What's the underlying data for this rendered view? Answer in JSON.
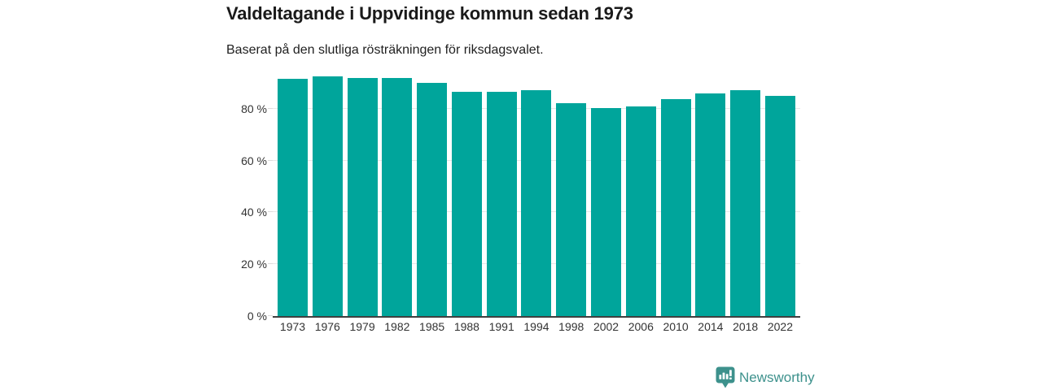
{
  "header": {
    "title": "Valdeltagande i Uppvidinge kommun sedan 1973",
    "subtitle": "Baserat på den slutliga rösträkningen för riksdagsvalet."
  },
  "chart_data": {
    "type": "bar",
    "title": "Valdeltagande i Uppvidinge kommun sedan 1973",
    "subtitle": "Baserat på den slutliga rösträkningen för riksdagsvalet.",
    "categories": [
      "1973",
      "1976",
      "1979",
      "1982",
      "1985",
      "1988",
      "1991",
      "1994",
      "1998",
      "2002",
      "2006",
      "2010",
      "2014",
      "2018",
      "2022"
    ],
    "series": [
      {
        "name": "Valdeltagande",
        "unit": "%",
        "values": [
          91.5,
          92.5,
          91.9,
          91.9,
          90.1,
          86.5,
          86.5,
          87.2,
          82.0,
          80.2,
          80.9,
          83.6,
          86.0,
          87.0,
          84.9
        ]
      }
    ],
    "xlabel": "",
    "ylabel": "",
    "ylim": [
      0,
      100
    ],
    "yticks": [
      {
        "value": 0,
        "label": "0 %"
      },
      {
        "value": 20,
        "label": "20 %"
      },
      {
        "value": 40,
        "label": "40 %"
      },
      {
        "value": 60,
        "label": "60 %"
      },
      {
        "value": 80,
        "label": "80 %"
      }
    ],
    "grid": "horizontal",
    "legend_position": "none",
    "bar_color": "#00a59b"
  },
  "footer": {
    "brand": "Newsworthy"
  },
  "colors": {
    "bar": "#00a59b",
    "gridline": "#e8e8e8",
    "axis_line": "#404040",
    "title_text": "#1a1a1a",
    "tick_text": "#333333",
    "logo_teal": "#3d918c"
  }
}
